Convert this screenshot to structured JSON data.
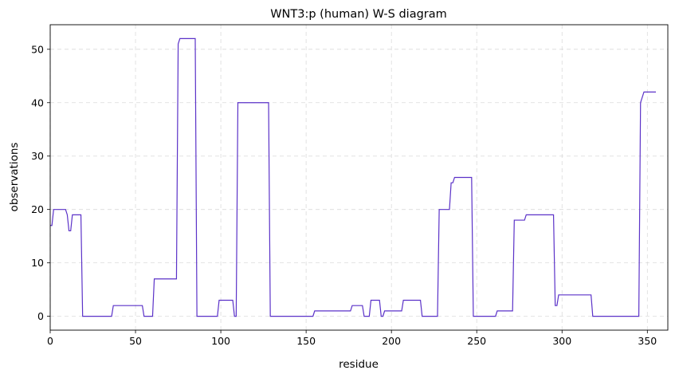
{
  "chart_data": {
    "type": "line",
    "title": "WNT3:p (human) W-S diagram",
    "xlabel": "residue",
    "ylabel": "observations",
    "xlim": [
      0,
      362
    ],
    "ylim": [
      -2.6,
      54.6
    ],
    "xticks": [
      0,
      50,
      100,
      150,
      200,
      250,
      300,
      350
    ],
    "yticks": [
      0,
      10,
      20,
      30,
      40,
      50
    ],
    "grid": true,
    "line_color": "#5b32c8",
    "series": [
      {
        "x": [
          0,
          1,
          2,
          9,
          10,
          11,
          12,
          13,
          18,
          19,
          36,
          37,
          54,
          55,
          60,
          61,
          74,
          75,
          76,
          85,
          86,
          98,
          99,
          107,
          108,
          109,
          110,
          128,
          129,
          154,
          155,
          176,
          177,
          183,
          184,
          187,
          188,
          193,
          194,
          195,
          196,
          206,
          207,
          217,
          218,
          227,
          228,
          234,
          235,
          236,
          237,
          247,
          248,
          261,
          262,
          271,
          272,
          278,
          279,
          295,
          296,
          297,
          298,
          317,
          318,
          345,
          346,
          347,
          348,
          355
        ],
        "y": [
          17,
          17,
          20,
          20,
          19,
          16,
          16,
          19,
          19,
          0,
          0,
          2,
          2,
          0,
          0,
          7,
          7,
          51,
          52,
          52,
          0,
          0,
          3,
          3,
          0,
          0,
          40,
          40,
          0,
          0,
          1,
          1,
          2,
          2,
          0,
          0,
          3,
          3,
          0,
          0,
          1,
          1,
          3,
          3,
          0,
          0,
          20,
          20,
          25,
          25,
          26,
          26,
          0,
          0,
          1,
          1,
          18,
          18,
          19,
          19,
          2,
          2,
          4,
          4,
          0,
          0,
          40,
          41,
          42,
          42
        ]
      }
    ]
  }
}
